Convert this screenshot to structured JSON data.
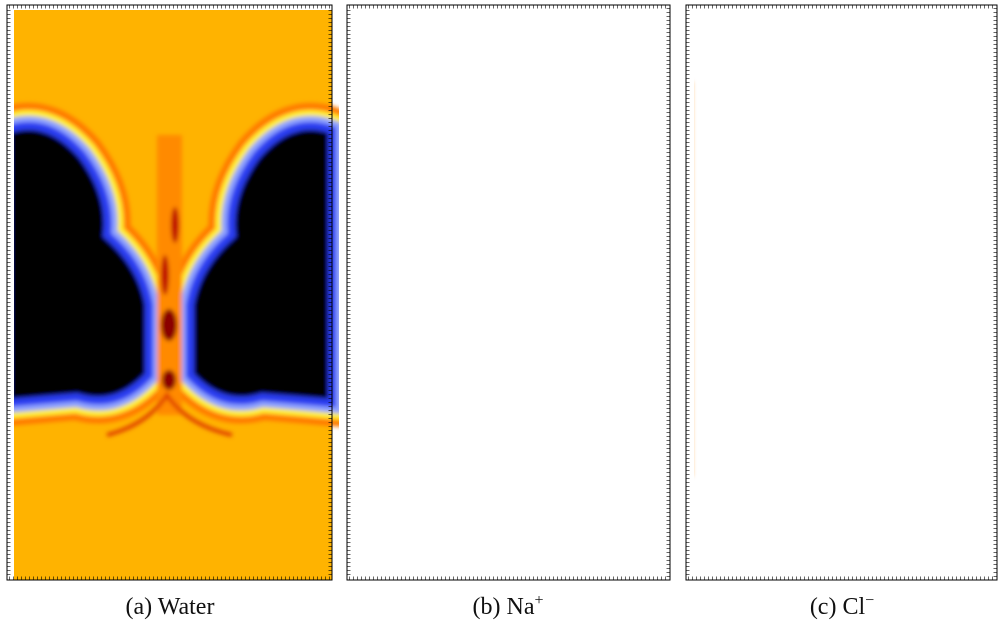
{
  "figure": {
    "captions": [
      {
        "label": "(a)",
        "text": "Water"
      },
      {
        "label": "(b)",
        "text": "Na",
        "sup": "+"
      },
      {
        "label": "(c)",
        "text": "Cl",
        "sup": "−"
      }
    ]
  }
}
